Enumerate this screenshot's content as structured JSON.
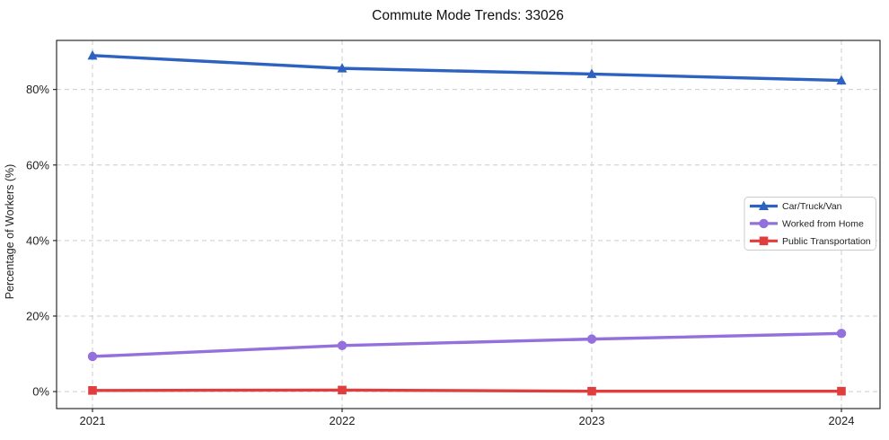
{
  "chart_data": {
    "type": "line",
    "title": "Commute Mode Trends: 33026",
    "xlabel": "",
    "ylabel": "Percentage of Workers (%)",
    "categories": [
      "2021",
      "2022",
      "2023",
      "2024"
    ],
    "yticks": [
      0,
      20,
      40,
      60,
      80
    ],
    "yticklabels": [
      "0%",
      "20%",
      "40%",
      "60%",
      "80%"
    ],
    "ylim": [
      -4.5,
      93
    ],
    "grid": "dashed-both-axes",
    "legend_position": "center-right",
    "series": [
      {
        "name": "Car/Truck/Van",
        "color": "#2d62c1",
        "marker": "triangle",
        "values": [
          89.0,
          85.6,
          84.1,
          82.4
        ]
      },
      {
        "name": "Worked from Home",
        "color": "#9370db",
        "marker": "circle",
        "values": [
          9.3,
          12.2,
          13.9,
          15.4
        ]
      },
      {
        "name": "Public Transportation",
        "color": "#e03e3e",
        "marker": "square",
        "values": [
          0.3,
          0.4,
          0.1,
          0.1
        ]
      }
    ],
    "colors": {
      "grid": "#cccccc",
      "spine": "#1a1a1a",
      "legend_border": "#cccccc",
      "background": "#ffffff"
    }
  }
}
